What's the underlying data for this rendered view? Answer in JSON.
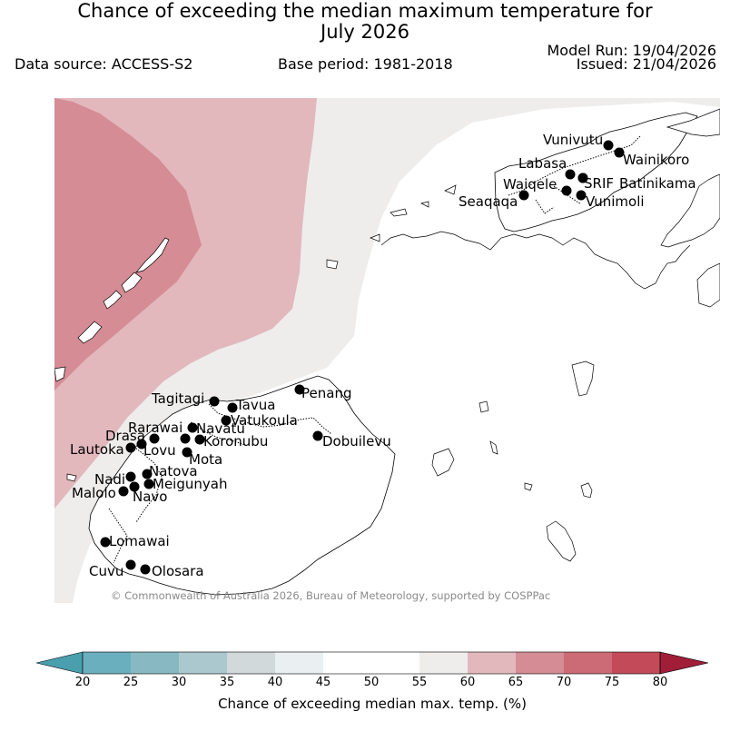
{
  "title": {
    "line1": "Chance of exceeding the median maximum temperature for",
    "line2": "July 2026"
  },
  "meta": {
    "data_source": "Data source: ACCESS-S2",
    "base_period": "Base period: 1981-2018",
    "model_run": "Model Run: 19/04/2026",
    "issued": "Issued: 21/04/2026"
  },
  "copyright": "© Commonwealth of Australia 2026, Bureau of Meteorology, supported by COSPPac",
  "colorbar": {
    "label": "Chance of exceeding median max. temp. (%)",
    "ticks": [
      "20",
      "25",
      "30",
      "35",
      "40",
      "45",
      "50",
      "55",
      "60",
      "65",
      "70",
      "75",
      "80"
    ],
    "colors": {
      "under": "#4a9fae",
      "20_25": "#6aafbd",
      "25_30": "#88b9c3",
      "30_35": "#aac8cd",
      "35_40": "#d2d9db",
      "40_45": "#eaf0f2",
      "45_50": "#ffffff",
      "50_55": "#ffffff",
      "55_60": "#eeedec",
      "60_65": "#e2b8bd",
      "65_70": "#d58c94",
      "70_75": "#cc6b75",
      "75_80": "#c34a58",
      "over": "#a01e38"
    }
  },
  "stations": [
    {
      "name": "Vunivutu"
    },
    {
      "name": "Wainikoro"
    },
    {
      "name": "Labasa"
    },
    {
      "name": "SRIF"
    },
    {
      "name": "Batinikama"
    },
    {
      "name": "Waiqele"
    },
    {
      "name": "Seaqaqa"
    },
    {
      "name": "Vunimoli"
    },
    {
      "name": "Penang"
    },
    {
      "name": "Tagitagi"
    },
    {
      "name": "Tavua"
    },
    {
      "name": "Vatukoula"
    },
    {
      "name": "Rarawai"
    },
    {
      "name": "Navatu"
    },
    {
      "name": "Koronubu"
    },
    {
      "name": "Drasa"
    },
    {
      "name": "Lautoka"
    },
    {
      "name": "Lovu"
    },
    {
      "name": "Mota"
    },
    {
      "name": "Dobuilevu"
    },
    {
      "name": "Natova"
    },
    {
      "name": "Nadi"
    },
    {
      "name": "Meigunyah"
    },
    {
      "name": "Malolo"
    },
    {
      "name": "Navo"
    },
    {
      "name": "Lomawai"
    },
    {
      "name": "Cuvu"
    },
    {
      "name": "Olosara"
    }
  ]
}
